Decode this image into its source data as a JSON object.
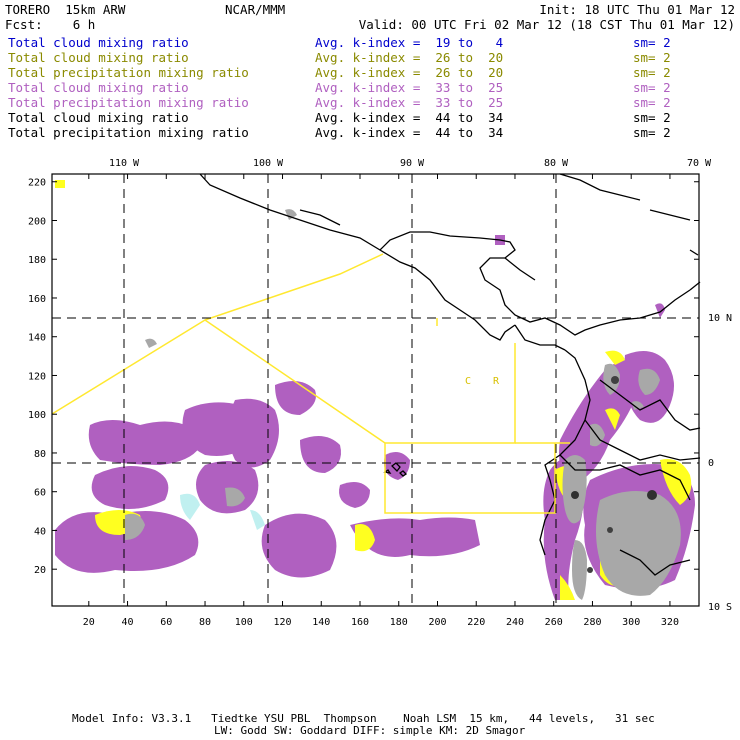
{
  "header": {
    "model": "TORERO  15km ARW",
    "org": "NCAR/MMM",
    "init": "Init: 18 UTC Thu 01 Mar 12",
    "fcst": "Fcst:    6 h",
    "valid": "Valid: 00 UTC Fri 02 Mar 12 (18 CST Thu 01 Mar 12)"
  },
  "legend_rows": [
    {
      "field": "Total cloud mixing ratio",
      "kidx": "Avg. k-index =  19 to   4",
      "sm": "sm= 2",
      "color": "#0000cc"
    },
    {
      "field": "Total cloud mixing ratio",
      "kidx": "Avg. k-index =  26 to  20",
      "sm": "sm= 2",
      "color": "#8a8a00"
    },
    {
      "field": "Total precipitation mixing ratio",
      "kidx": "Avg. k-index =  26 to  20",
      "sm": "sm= 2",
      "color": "#8a8a00"
    },
    {
      "field": "Total cloud mixing ratio",
      "kidx": "Avg. k-index =  33 to  25",
      "sm": "sm= 2",
      "color": "#b060c0"
    },
    {
      "field": "Total precipitation mixing ratio",
      "kidx": "Avg. k-index =  33 to  25",
      "sm": "sm= 2",
      "color": "#b060c0"
    },
    {
      "field": "Total cloud mixing ratio",
      "kidx": "Avg. k-index =  44 to  34",
      "sm": "sm= 2",
      "color": "#000000"
    },
    {
      "field": "Total precipitation mixing ratio",
      "kidx": "Avg. k-index =  44 to  34",
      "sm": "sm= 2",
      "color": "#000000"
    }
  ],
  "map": {
    "x_ticks": [
      "20",
      "40",
      "60",
      "80",
      "100",
      "120",
      "140",
      "160",
      "180",
      "200",
      "220",
      "240",
      "260",
      "280",
      "300",
      "320"
    ],
    "y_ticks": [
      "20",
      "40",
      "60",
      "80",
      "100",
      "120",
      "140",
      "160",
      "180",
      "200",
      "220"
    ],
    "lon_labels": [
      "110 W",
      "100 W",
      "90 W",
      "80 W",
      "70 W"
    ],
    "lat_labels": [
      "10 N",
      "0",
      "10 S"
    ],
    "region_labels": [
      "C",
      "R"
    ],
    "colors": {
      "purple": "#b060c0",
      "yellow": "#ffff20",
      "gray": "#a8a8a8",
      "domain": "#ffe830",
      "cyan": "#c0f0f0"
    }
  },
  "footer": {
    "line1": "Model Info: V3.3.1   Tiedtke YSU PBL  Thompson    Noah LSM  15 km,   44 levels,   31 sec",
    "line2": "LW: Godd SW: Goddard DIFF: simple KM: 2D Smagor"
  }
}
